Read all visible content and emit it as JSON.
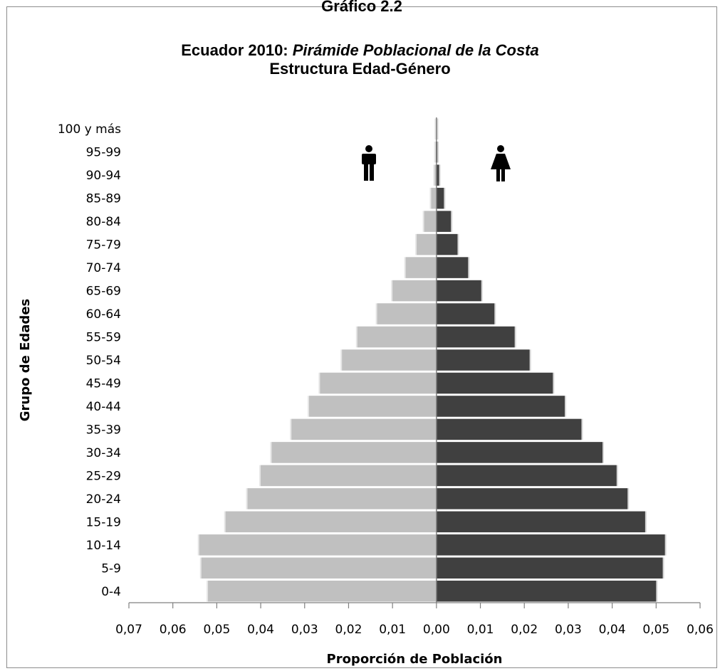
{
  "header_label": "Gráfico 2.2",
  "title": {
    "prefix": "Ecuador 2010: ",
    "italic": "Pirámide Poblacional de la Costa",
    "line2": "Estructura Edad-Género"
  },
  "icons": {
    "male": "male-person-icon",
    "female": "female-person-icon"
  },
  "chart_data": {
    "type": "bar",
    "orientation": "horizontal-population-pyramid",
    "title": "Ecuador 2010: Pirámide Poblacional de la Costa — Estructura Edad-Género",
    "xlabel": "Proporción de Población",
    "ylabel": "Grupo de Edades",
    "xlim": [
      -0.07,
      0.06
    ],
    "x_ticks": [
      "0,07",
      "0,06",
      "0,05",
      "0,04",
      "0,03",
      "0,02",
      "0,01",
      "0,00",
      "0,01",
      "0,02",
      "0,03",
      "0,04",
      "0,05",
      "0,06"
    ],
    "categories": [
      "0-4",
      "5-9",
      "10-14",
      "15-19",
      "20-24",
      "25-29",
      "30-34",
      "35-39",
      "40-44",
      "45-49",
      "50-54",
      "55-59",
      "60-64",
      "65-69",
      "70-74",
      "75-79",
      "80-84",
      "85-89",
      "90-94",
      "95-99",
      "100 y más"
    ],
    "series": [
      {
        "side": "left",
        "color": "#c0c0c0",
        "values": [
          0.052,
          0.0535,
          0.054,
          0.048,
          0.043,
          0.04,
          0.0375,
          0.033,
          0.029,
          0.0265,
          0.0215,
          0.018,
          0.0135,
          0.01,
          0.007,
          0.0045,
          0.0028,
          0.0012,
          0.0004,
          0.0002,
          0.0001
        ]
      },
      {
        "side": "right",
        "color": "#404040",
        "values": [
          0.05,
          0.0515,
          0.052,
          0.0475,
          0.0435,
          0.041,
          0.0378,
          0.033,
          0.0292,
          0.0265,
          0.0212,
          0.0178,
          0.0132,
          0.0102,
          0.0072,
          0.0048,
          0.0033,
          0.0017,
          0.0006,
          0.0002,
          0.0001
        ]
      }
    ],
    "grid": false
  }
}
